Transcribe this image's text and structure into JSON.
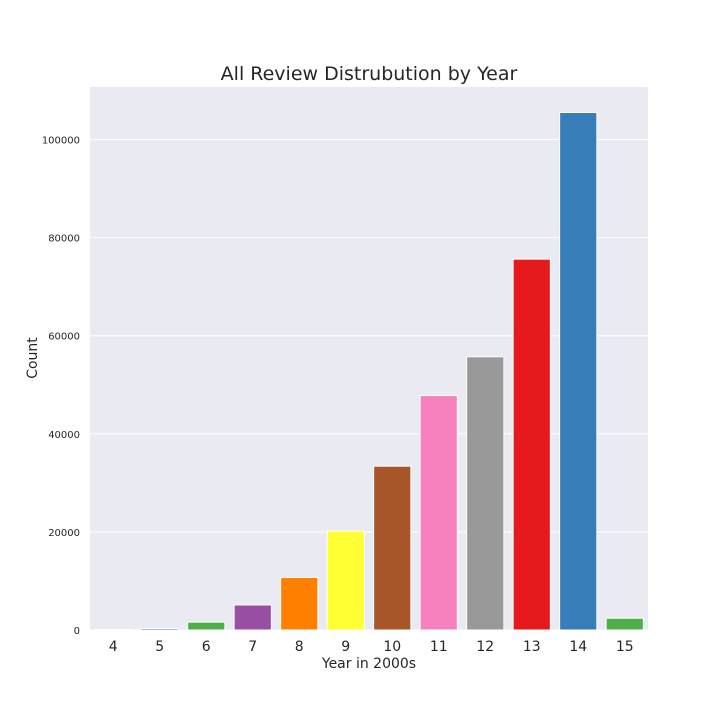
{
  "chart_data": {
    "type": "bar",
    "title": "All Review Distrubution by Year",
    "xlabel": "Year in 2000s",
    "ylabel": "Count",
    "categories": [
      "4",
      "5",
      "6",
      "7",
      "8",
      "9",
      "10",
      "11",
      "12",
      "13",
      "14",
      "15"
    ],
    "values": [
      100,
      300,
      1600,
      5100,
      10700,
      20200,
      33400,
      47800,
      55700,
      75600,
      105500,
      2400
    ],
    "colors": [
      "#e41a1c",
      "#377eb8",
      "#4daf4a",
      "#984ea3",
      "#ff7f00",
      "#ffff33",
      "#a65628",
      "#f781bf",
      "#999999",
      "#e41a1c",
      "#377eb8",
      "#4daf4a"
    ],
    "ylim": [
      0,
      110700
    ],
    "yticks": [
      0,
      20000,
      40000,
      60000,
      80000,
      100000
    ],
    "grid": true,
    "background": "#eaeaf2"
  }
}
